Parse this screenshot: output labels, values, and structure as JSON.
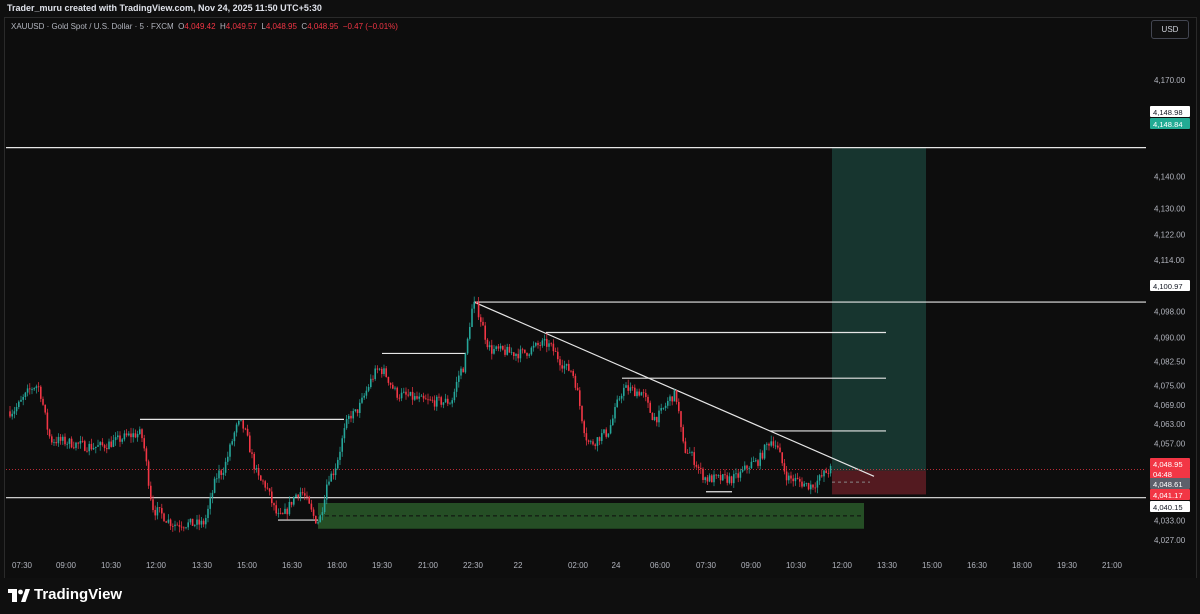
{
  "header": {
    "credit": "Trader_muru created with TradingView.com, Nov 24, 2025 11:50 UTC+5:30"
  },
  "legend": {
    "symbol": "XAUUSD · Gold Spot / U.S. Dollar · 5 · FXCM",
    "open_label": "O",
    "open": "4,049.42",
    "high_label": "H",
    "high": "4,049.57",
    "low_label": "L",
    "low": "4,048.95",
    "close_label": "C",
    "close": "4,048.95",
    "change": "−0.47 (−0.01%)"
  },
  "currency_button": "USD",
  "price_axis": [
    "4,170.00",
    "4,160.00",
    "4,140.00",
    "4,130.00",
    "4,122.00",
    "4,114.00",
    "4,106.00",
    "4,098.00",
    "4,090.00",
    "4,082.50",
    "4,075.00",
    "4,069.00",
    "4,063.00",
    "4,057.00",
    "4,051.00",
    "4,033.00",
    "4,027.00"
  ],
  "price_badges": {
    "level_top": "4,148.98",
    "target": "4,148.84",
    "level_mid": "4,100.97",
    "current": "4,048.95",
    "countdown": "04:48",
    "entry": "4,048.61",
    "stop": "4,041.17",
    "level_low": "4,040.15"
  },
  "time_axis": [
    "07:30",
    "09:00",
    "10:30",
    "12:00",
    "13:30",
    "15:00",
    "16:30",
    "18:00",
    "19:30",
    "21:00",
    "22:30",
    "22",
    "02:00",
    "24",
    "06:00",
    "07:30",
    "09:00",
    "10:30",
    "12:00",
    "13:30",
    "15:00",
    "16:30",
    "18:00",
    "19:30",
    "21:00"
  ],
  "colors": {
    "up": "#26a69a",
    "down": "#f23645",
    "target_zone": "#1a3d36",
    "stop_zone": "#5b1c22",
    "demand_zone": "#2a5a2a"
  },
  "footer": {
    "brand": "TradingView",
    "logo_icon": "tradingview-logo-icon"
  }
}
